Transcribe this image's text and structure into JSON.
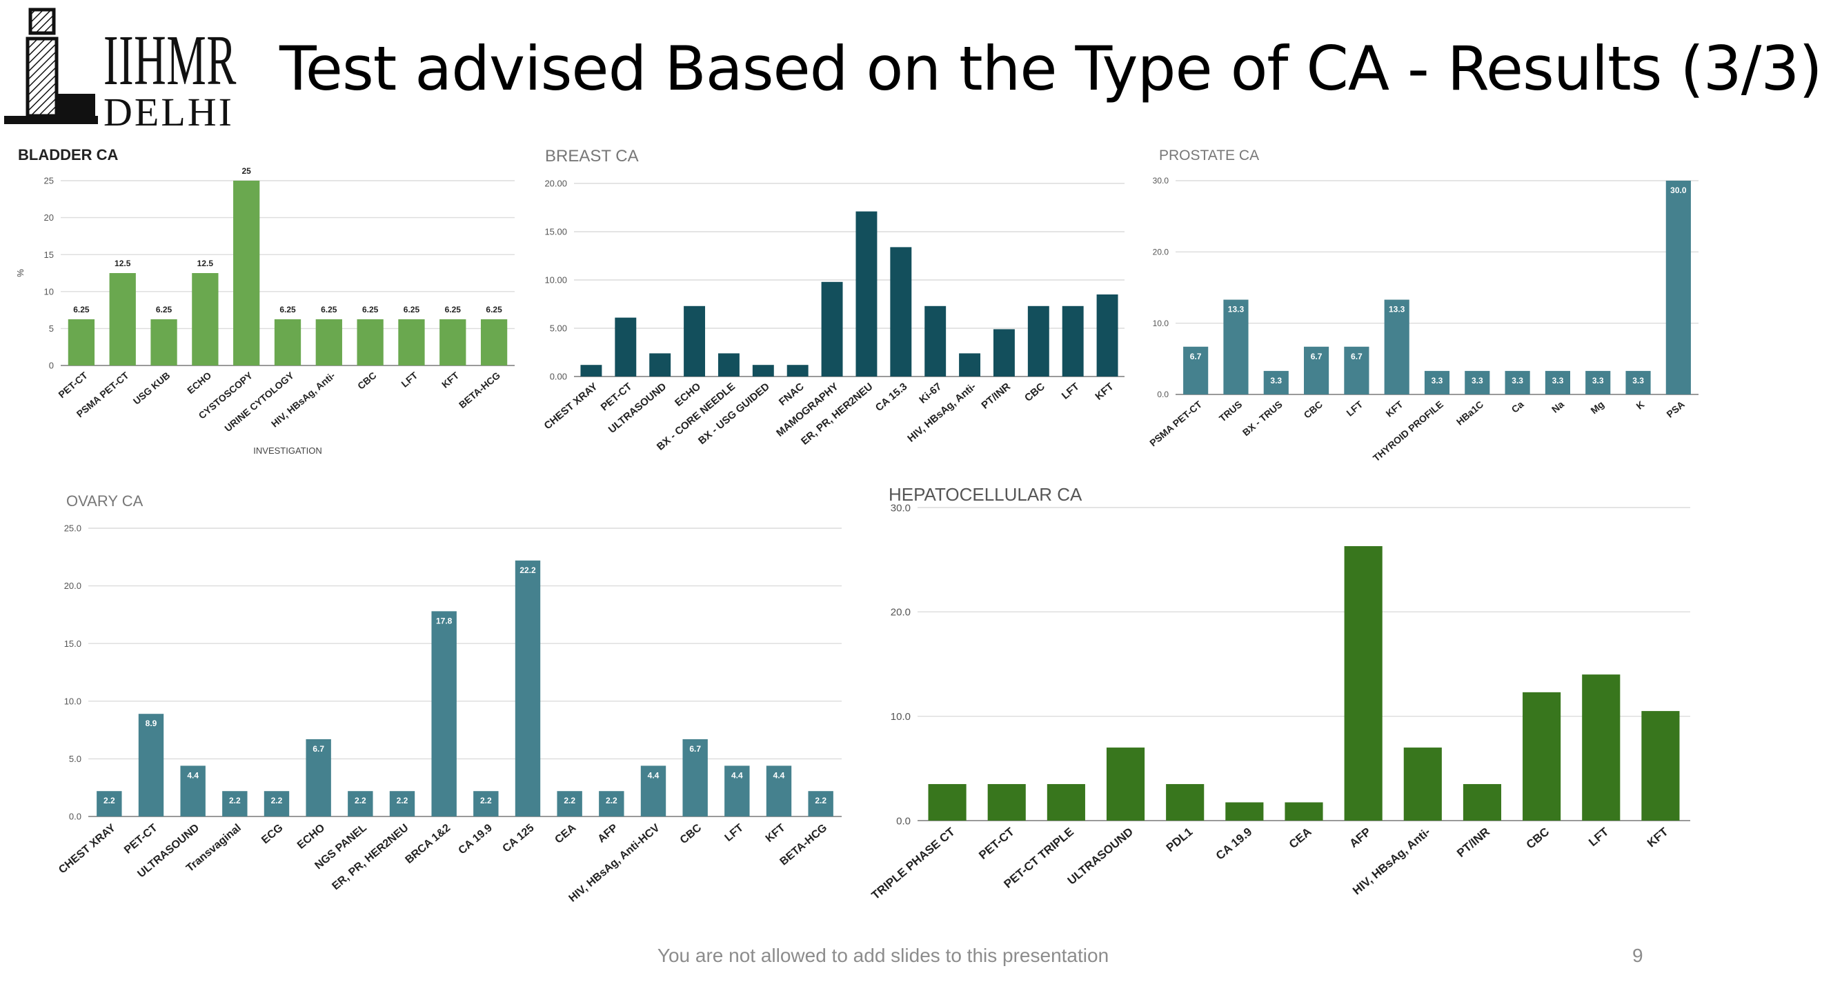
{
  "slide": {
    "logo": {
      "line1": "IIHMR",
      "line2": "DELHI"
    },
    "title": "Test advised Based on the Type of CA - Results (3/3)",
    "footer": "You are not allowed to add slides to this presentation",
    "page_number": "9"
  },
  "colors": {
    "bladder": "#6aa84f",
    "breast": "#134f5c",
    "prostate": "#45818e",
    "ovary": "#45818e",
    "hepatocellular": "#38761d"
  },
  "chart_data": [
    {
      "type": "bar",
      "title": "BLADDER CA",
      "xlabel": "INVESTIGATION",
      "ylabel": "%",
      "ylim": [
        0,
        25
      ],
      "yticks": [
        "0",
        "5",
        "10",
        "15",
        "20",
        "25"
      ],
      "categories": [
        "PET-CT",
        "PSMA PET-CT",
        "USG KUB",
        "ECHO",
        "CYSTOSCOPY",
        "URINE CYTOLOGY",
        "HIV, HBsAg, Anti-",
        "CBC",
        "LFT",
        "KFT",
        "BETA-HCG"
      ],
      "values": [
        6.25,
        12.5,
        6.25,
        12.5,
        25,
        6.25,
        6.25,
        6.25,
        6.25,
        6.25,
        6.25
      ],
      "data_labels": [
        "6.25",
        "12.5",
        "6.25",
        "12.5",
        "25",
        "6.25",
        "6.25",
        "6.25",
        "6.25",
        "6.25",
        "6.25"
      ],
      "grid": true
    },
    {
      "type": "bar",
      "title": "BREAST CA",
      "ylim": [
        0,
        20
      ],
      "yticks": [
        "0.00",
        "5.00",
        "10.00",
        "15.00",
        "20.00"
      ],
      "categories": [
        "CHEST XRAY",
        "PET-CT",
        "ULTRASOUND",
        "ECHO",
        "BX - CORE NEEDLE",
        "BX - USG GUIDED",
        "FNAC",
        "MAMOGRAPHY",
        "ER, PR, HER2NEU",
        "CA 15.3",
        "Ki-67",
        "HIV, HBsAg, Anti-",
        "PT/INR",
        "CBC",
        "LFT",
        "KFT"
      ],
      "values": [
        1.2,
        6.1,
        2.4,
        7.3,
        2.4,
        1.2,
        1.2,
        9.8,
        17.1,
        13.4,
        7.3,
        2.4,
        4.9,
        7.3,
        7.3,
        8.5
      ],
      "grid": true
    },
    {
      "type": "bar",
      "title": "PROSTATE CA",
      "ylim": [
        0,
        30
      ],
      "yticks": [
        "0.0",
        "10.0",
        "20.0",
        "30.0"
      ],
      "categories": [
        "PSMA PET-CT",
        "TRUS",
        "BX - TRUS",
        "CBC",
        "LFT",
        "KFT",
        "THYROID PROFILE",
        "HBa1C",
        "Ca",
        "Na",
        "Mg",
        "K",
        "PSA"
      ],
      "values": [
        6.7,
        13.3,
        3.3,
        6.7,
        6.7,
        13.3,
        3.3,
        3.3,
        3.3,
        3.3,
        3.3,
        3.3,
        30.0
      ],
      "data_labels": [
        "6.7",
        "13.3",
        "3.3",
        "6.7",
        "6.7",
        "13.3",
        "3.3",
        "3.3",
        "3.3",
        "3.3",
        "3.3",
        "3.3",
        "30.0"
      ],
      "grid": true
    },
    {
      "type": "bar",
      "title": "OVARY CA",
      "ylim": [
        0,
        25
      ],
      "yticks": [
        "0.0",
        "5.0",
        "10.0",
        "15.0",
        "20.0",
        "25.0"
      ],
      "categories": [
        "CHEST XRAY",
        "PET-CT",
        "ULTRASOUND",
        "Transvaginal",
        "ECG",
        "ECHO",
        "NGS PANEL",
        "ER, PR, HER2NEU",
        "BRCA 1&2",
        "CA 19.9",
        "CA 125",
        "CEA",
        "AFP",
        "HIV, HBsAg, Anti-HCV",
        "CBC",
        "LFT",
        "KFT",
        "BETA-HCG"
      ],
      "values": [
        2.2,
        8.9,
        4.4,
        2.2,
        2.2,
        6.7,
        2.2,
        2.2,
        17.8,
        2.2,
        22.2,
        2.2,
        2.2,
        4.4,
        6.7,
        4.4,
        4.4,
        2.2
      ],
      "data_labels": [
        "2.2",
        "8.9",
        "4.4",
        "2.2",
        "2.2",
        "6.7",
        "2.2",
        "2.2",
        "17.8",
        "2.2",
        "22.2",
        "2.2",
        "2.2",
        "4.4",
        "6.7",
        "4.4",
        "4.4",
        "2.2"
      ],
      "grid": true
    },
    {
      "type": "bar",
      "title": "HEPATOCELLULAR CA",
      "ylim": [
        0,
        30
      ],
      "yticks": [
        "0.0",
        "10.0",
        "20.0",
        "30.0"
      ],
      "categories": [
        "TRIPLE PHASE CT",
        "PET-CT",
        "PET-CT TRIPLE",
        "ULTRASOUND",
        "PDL1",
        "CA 19.9",
        "CEA",
        "AFP",
        "HIV, HBsAg, Anti-",
        "PT/INR",
        "CBC",
        "LFT",
        "KFT"
      ],
      "values": [
        3.5,
        3.5,
        3.5,
        7.0,
        3.5,
        1.75,
        1.75,
        26.3,
        7.0,
        3.5,
        12.3,
        14.0,
        10.5
      ],
      "grid": true
    }
  ]
}
